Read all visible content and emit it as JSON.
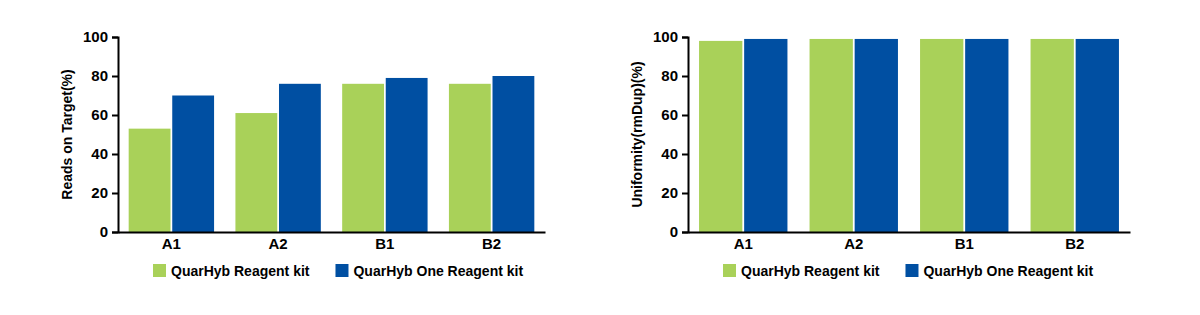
{
  "chart_data": [
    {
      "type": "bar",
      "y_label": "Reads on Target(%)",
      "categories": [
        "A1",
        "A2",
        "B1",
        "B2"
      ],
      "series": [
        {
          "name": "QuarHyb Reagent kit",
          "color": "#a9d159",
          "values": [
            53,
            61,
            76,
            76
          ]
        },
        {
          "name": "QuarHyb One Reagent kit",
          "color": "#004fa2",
          "values": [
            70,
            76,
            79,
            80
          ]
        }
      ],
      "ylim": [
        0,
        100
      ],
      "yticks": [
        0,
        20,
        40,
        60,
        80,
        100
      ],
      "grid": false,
      "legend": "bottom"
    },
    {
      "type": "bar",
      "y_label": "Uniformity(rmDup)(%)",
      "categories": [
        "A1",
        "A2",
        "B1",
        "B2"
      ],
      "series": [
        {
          "name": "QuarHyb Reagent kit",
          "color": "#a9d159",
          "values": [
            98,
            99,
            99,
            99
          ]
        },
        {
          "name": "QuarHyb One Reagent kit",
          "color": "#004fa2",
          "values": [
            99,
            99,
            99,
            99
          ]
        }
      ],
      "ylim": [
        0,
        100
      ],
      "yticks": [
        0,
        20,
        40,
        60,
        80,
        100
      ],
      "grid": false,
      "legend": "bottom"
    }
  ]
}
